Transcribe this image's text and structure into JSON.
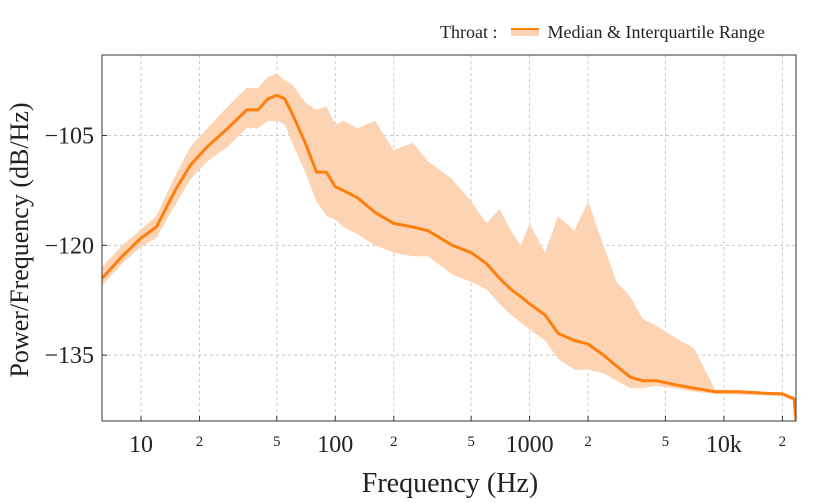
{
  "chart_data": {
    "type": "line",
    "title": "",
    "xlabel": "Frequency (Hz)",
    "ylabel": "Power/Frequency (dB/Hz)",
    "x_scale": "log",
    "xlim": [
      6.3,
      23500
    ],
    "ylim": [
      -144,
      -94
    ],
    "x_ticks": [
      {
        "value": 10,
        "label": "10",
        "major": true
      },
      {
        "value": 20,
        "label": "2",
        "major": false
      },
      {
        "value": 50,
        "label": "5",
        "major": false
      },
      {
        "value": 100,
        "label": "100",
        "major": true
      },
      {
        "value": 200,
        "label": "2",
        "major": false
      },
      {
        "value": 500,
        "label": "5",
        "major": false
      },
      {
        "value": 1000,
        "label": "1000",
        "major": true
      },
      {
        "value": 2000,
        "label": "2",
        "major": false
      },
      {
        "value": 5000,
        "label": "5",
        "major": false
      },
      {
        "value": 10000,
        "label": "10k",
        "major": true
      },
      {
        "value": 20000,
        "label": "2",
        "major": false
      }
    ],
    "y_ticks": [
      {
        "value": -105,
        "label": "−105"
      },
      {
        "value": -120,
        "label": "−120"
      },
      {
        "value": -135,
        "label": "−135"
      }
    ],
    "grid": true,
    "legend": {
      "position": "top-right",
      "prefix": "Throat :",
      "label": "Median & Interquartile Range"
    },
    "series": [
      {
        "name": "Median",
        "color": "#ff7f0e",
        "band_color": "#fdd4b3",
        "x": [
          6.3,
          8,
          10,
          12,
          15,
          18,
          22,
          28,
          35,
          40,
          45,
          50,
          55,
          60,
          70,
          80,
          90,
          100,
          110,
          130,
          160,
          200,
          250,
          300,
          400,
          500,
          600,
          700,
          800,
          900,
          1000,
          1200,
          1400,
          1700,
          2000,
          2400,
          2800,
          3300,
          3800,
          4500,
          5500,
          7000,
          9000,
          12000,
          16000,
          20000,
          23000,
          23500
        ],
        "median": [
          -124.5,
          -121.5,
          -119,
          -117.5,
          -112.5,
          -109,
          -106.5,
          -104,
          -101.5,
          -101.5,
          -100,
          -99.5,
          -100,
          -102,
          -106,
          -110,
          -110,
          -112,
          -112.5,
          -113.5,
          -115.5,
          -117,
          -117.5,
          -118,
          -120,
          -121,
          -122.5,
          -124.5,
          -126,
          -127,
          -128,
          -129.5,
          -132,
          -133,
          -133.5,
          -135,
          -136.5,
          -138,
          -138.5,
          -138.5,
          -139,
          -139.5,
          -140,
          -140,
          -140.2,
          -140.3,
          -141,
          -144
        ],
        "q1": [
          -125.5,
          -122.5,
          -120.2,
          -119,
          -114.5,
          -111,
          -108.5,
          -106.5,
          -104,
          -104,
          -103,
          -103,
          -103.5,
          -106,
          -110,
          -114,
          -116,
          -116.5,
          -117.5,
          -118.5,
          -120,
          -121,
          -121.5,
          -121.5,
          -124,
          -125,
          -126,
          -128,
          -129.5,
          -130.5,
          -131.5,
          -133,
          -135.5,
          -137,
          -137,
          -137.5,
          -138.5,
          -139.5,
          -139.5,
          -139.2,
          -139.5,
          -140,
          -140.3,
          -140.4,
          -140.5,
          -140.6,
          -141.3,
          -144
        ],
        "q3": [
          -123,
          -120,
          -117.8,
          -116,
          -110.5,
          -106.5,
          -104,
          -101,
          -98.5,
          -98.5,
          -97,
          -96.5,
          -97.5,
          -98,
          -100.5,
          -101.5,
          -101,
          -103.5,
          -103,
          -104,
          -103,
          -107,
          -106,
          -108.5,
          -111,
          -114,
          -117,
          -115,
          -118,
          -120,
          -117,
          -121,
          -116,
          -118,
          -114,
          -120,
          -125,
          -127,
          -130,
          -131,
          -132.5,
          -134,
          -139.7,
          -139.8,
          -140,
          -140.1,
          -140.7,
          -144
        ]
      }
    ]
  }
}
